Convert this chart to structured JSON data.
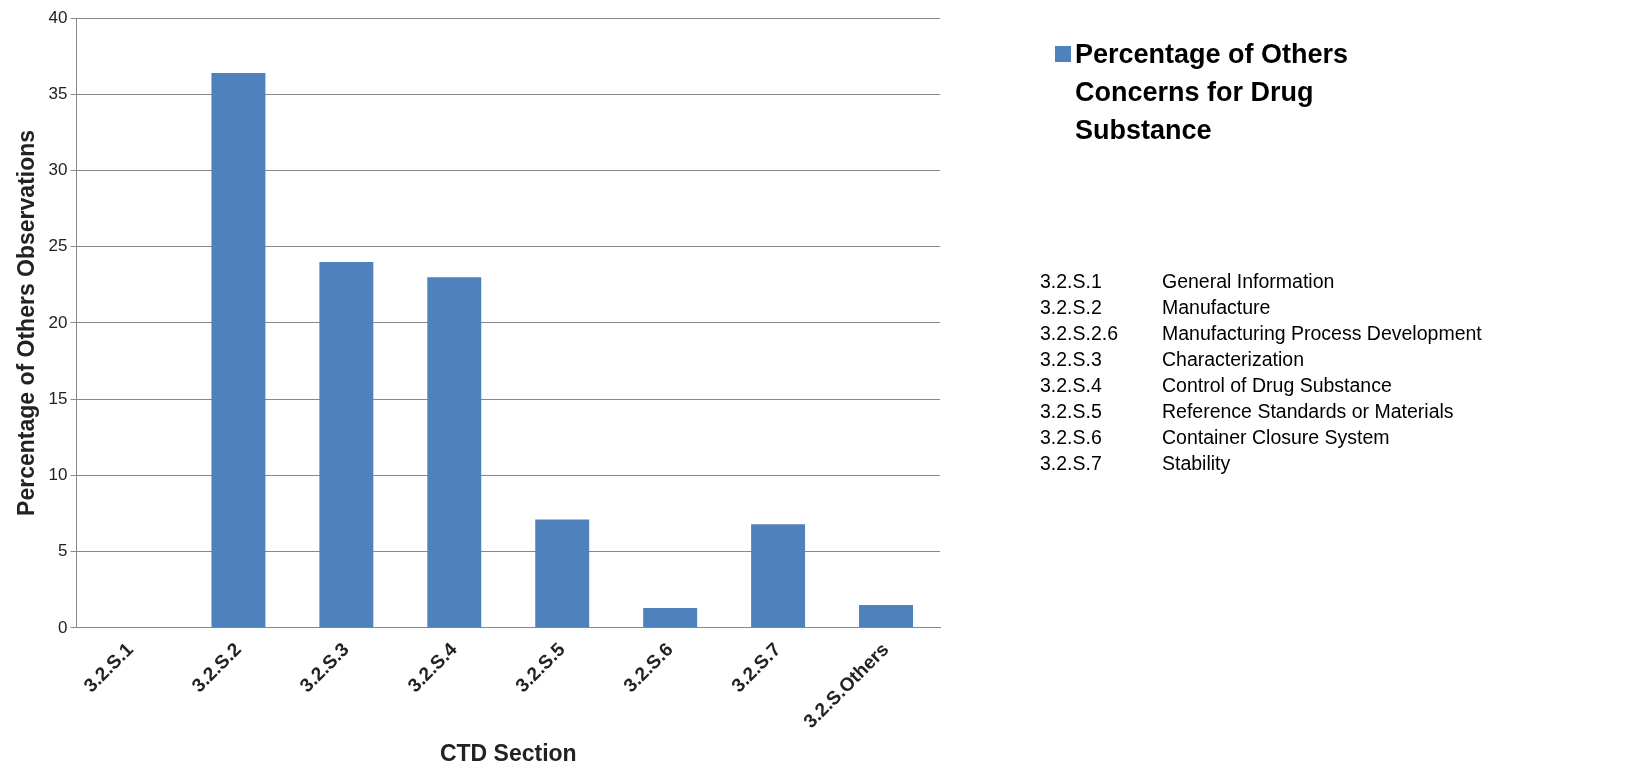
{
  "chart_data": {
    "type": "bar",
    "xlabel": "CTD Section",
    "ylabel": "Percentage of Others Observations",
    "categories": [
      "3.2.S.1",
      "3.2.S.2",
      "3.2.S.3",
      "3.2.S.4",
      "3.2.S.5",
      "3.2.S.6",
      "3.2.S.7",
      "3.2.S.Others"
    ],
    "series": [
      {
        "name": "Percentage of Others Concerns for Drug Substance",
        "color": "#4f81bd",
        "values": [
          0,
          36.4,
          24,
          23,
          7.1,
          1.3,
          6.8,
          1.5
        ]
      }
    ],
    "ylim": [
      0,
      40
    ],
    "yticks": [
      0,
      5,
      10,
      15,
      20,
      25,
      30,
      35,
      40
    ],
    "grid": "y",
    "legend": "right",
    "annotations": [
      "3.2.S.1 General Information",
      "3.2.S.2 Manufacture",
      "3.2.S.2.6 Manufacturing Process Development",
      "3.2.S.3 Characterization",
      "3.2.S.4 Control of Drug Substance",
      "3.2.S.5 Reference Standards or Materials",
      "3.2.S.6 Container Closure System",
      "3.2.S.7 Stability"
    ]
  }
}
